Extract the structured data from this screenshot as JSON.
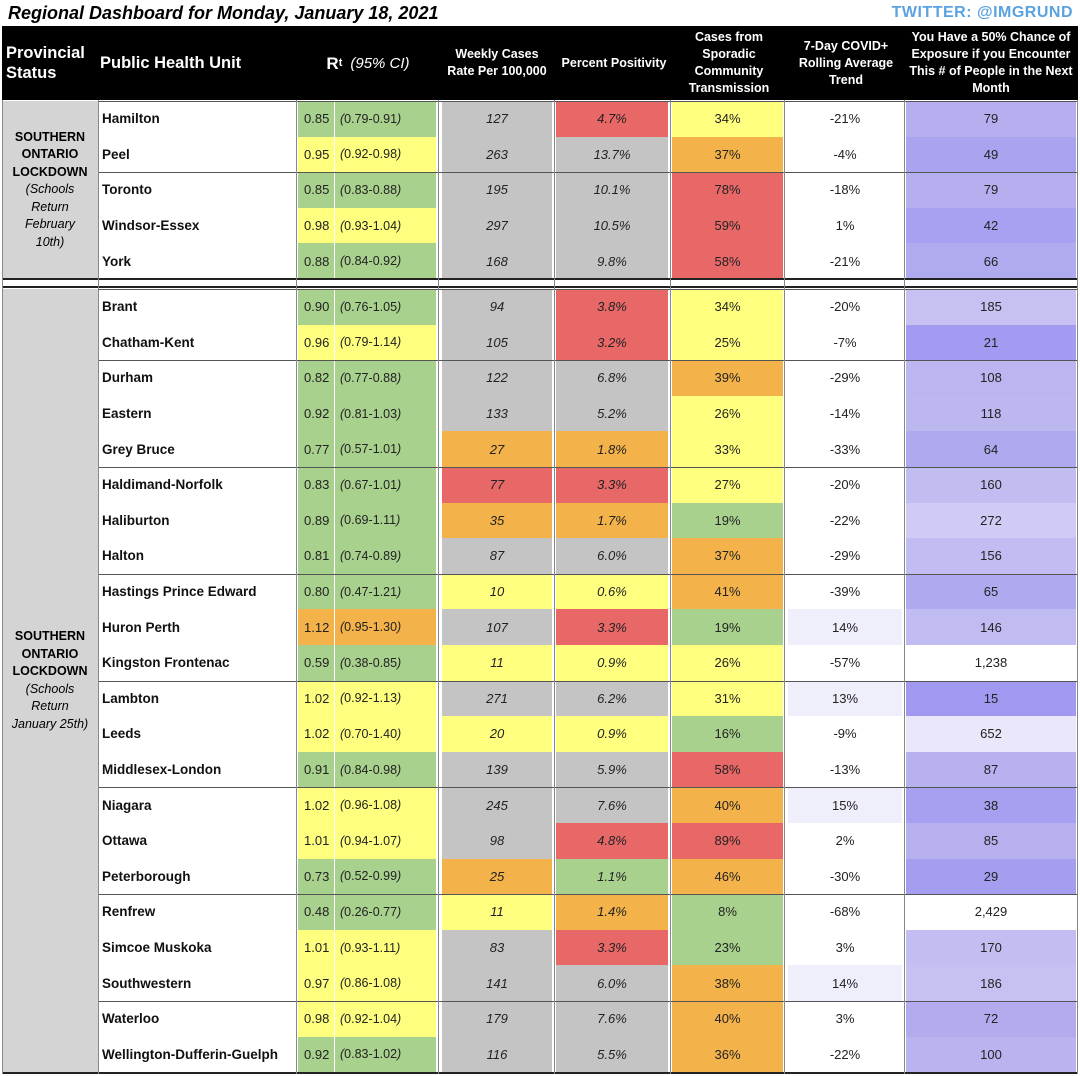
{
  "title": "Regional Dashboard for Monday, January 18, 2021",
  "twitter": "TWITTER: @IMGRUND",
  "headers": {
    "status": "Provincial Status",
    "phu": "Public Health Unit",
    "rt_main": "R",
    "rt_sub": "t",
    "rt_ci": "(95% CI)",
    "weekly": "Weekly Cases Rate Per 100,000",
    "positivity": "Percent Positivity",
    "sporadic": "Cases from Sporadic Community Transmission",
    "trend": "7-Day COVID+ Rolling Average Trend",
    "exposure": "You Have a 50% Chance of Exposure if you Encounter This # of People in the Next Month"
  },
  "groups": [
    {
      "lines": [
        "SOUTHERN",
        "ONTARIO",
        "LOCKDOWN"
      ],
      "italic_lines": [
        "(Schools",
        "Return",
        "February",
        "10th)"
      ]
    },
    {
      "lines": [
        "SOUTHERN",
        "ONTARIO",
        "LOCKDOWN"
      ],
      "italic_lines": [
        "(Schools",
        "Return",
        "January 25th)"
      ]
    }
  ],
  "colors": {
    "green": "#a9d18e",
    "yellow": "#ffff7f",
    "orange": "#f4b24a",
    "red": "#e86868",
    "gray": "#c4c4c4",
    "white": "#ffffff"
  },
  "rows": [
    {
      "name": "Hamilton",
      "rt": "0.85",
      "lo": "0.79",
      "hi": "0.91",
      "rtc": "green",
      "weekly": "127",
      "wc": "gray",
      "pos": "4.7%",
      "pc": "red",
      "spor": "34%",
      "sc": "yellow",
      "trend": "-21%",
      "tc": "white",
      "exp": "79",
      "ec": "#b5afef"
    },
    {
      "name": "Peel",
      "rt": "0.95",
      "lo": "0.92",
      "hi": "0.98",
      "rtc": "yellow",
      "weekly": "263",
      "wc": "gray",
      "pos": "13.7%",
      "pc": "gray",
      "spor": "37%",
      "sc": "orange",
      "trend": "-4%",
      "tc": "white",
      "exp": "49",
      "ec": "#aaa3f0"
    },
    {
      "name": "Toronto",
      "rt": "0.85",
      "lo": "0.83",
      "hi": "0.88",
      "rtc": "green",
      "weekly": "195",
      "wc": "gray",
      "pos": "10.1%",
      "pc": "gray",
      "spor": "78%",
      "sc": "red",
      "trend": "-18%",
      "tc": "white",
      "exp": "79",
      "ec": "#b5afef"
    },
    {
      "name": "Windsor-Essex",
      "rt": "0.98",
      "lo": "0.93",
      "hi": "1.04",
      "rtc": "yellow",
      "weekly": "297",
      "wc": "gray",
      "pos": "10.5%",
      "pc": "gray",
      "spor": "59%",
      "sc": "red",
      "trend": "1%",
      "tc": "white",
      "exp": "42",
      "ec": "#a8a0f0"
    },
    {
      "name": "York",
      "rt": "0.88",
      "lo": "0.84",
      "hi": "0.92",
      "rtc": "green",
      "weekly": "168",
      "wc": "gray",
      "pos": "9.8%",
      "pc": "gray",
      "spor": "58%",
      "sc": "red",
      "trend": "-21%",
      "tc": "white",
      "exp": "66",
      "ec": "#b0aaef"
    },
    {
      "name": "Brant",
      "rt": "0.90",
      "lo": "0.76",
      "hi": "1.05",
      "rtc": "green",
      "weekly": "94",
      "wc": "gray",
      "pos": "3.8%",
      "pc": "red",
      "spor": "34%",
      "sc": "yellow",
      "trend": "-20%",
      "tc": "white",
      "exp": "185",
      "ec": "#c6c1f2"
    },
    {
      "name": "Chatham-Kent",
      "rt": "0.96",
      "lo": "0.79",
      "hi": "1.14",
      "rtc": "yellow",
      "weekly": "105",
      "wc": "gray",
      "pos": "3.2%",
      "pc": "red",
      "spor": "25%",
      "sc": "yellow",
      "trend": "-7%",
      "tc": "white",
      "exp": "21",
      "ec": "#a39bf1"
    },
    {
      "name": "Durham",
      "rt": "0.82",
      "lo": "0.77",
      "hi": "0.88",
      "rtc": "green",
      "weekly": "122",
      "wc": "gray",
      "pos": "6.8%",
      "pc": "gray",
      "spor": "39%",
      "sc": "orange",
      "trend": "-29%",
      "tc": "white",
      "exp": "108",
      "ec": "#bbb5f0"
    },
    {
      "name": "Eastern",
      "rt": "0.92",
      "lo": "0.81",
      "hi": "1.03",
      "rtc": "green",
      "weekly": "133",
      "wc": "gray",
      "pos": "5.2%",
      "pc": "gray",
      "spor": "26%",
      "sc": "yellow",
      "trend": "-14%",
      "tc": "white",
      "exp": "118",
      "ec": "#bdb7f0"
    },
    {
      "name": "Grey Bruce",
      "rt": "0.77",
      "lo": "0.57",
      "hi": "1.01",
      "rtc": "green",
      "weekly": "27",
      "wc": "orange",
      "pos": "1.8%",
      "pc": "orange",
      "spor": "33%",
      "sc": "yellow",
      "trend": "-33%",
      "tc": "white",
      "exp": "64",
      "ec": "#afa9ef"
    },
    {
      "name": "Haldimand-Norfolk",
      "rt": "0.83",
      "lo": "0.67",
      "hi": "1.01",
      "rtc": "green",
      "weekly": "77",
      "wc": "red",
      "pos": "3.3%",
      "pc": "red",
      "spor": "27%",
      "sc": "yellow",
      "trend": "-20%",
      "tc": "white",
      "exp": "160",
      "ec": "#c2bdf1"
    },
    {
      "name": "Haliburton",
      "rt": "0.89",
      "lo": "0.69",
      "hi": "1.11",
      "rtc": "green",
      "weekly": "35",
      "wc": "orange",
      "pos": "1.7%",
      "pc": "orange",
      "spor": "19%",
      "sc": "green",
      "trend": "-22%",
      "tc": "white",
      "exp": "272",
      "ec": "#cfcbf4"
    },
    {
      "name": "Halton",
      "rt": "0.81",
      "lo": "0.74",
      "hi": "0.89",
      "rtc": "green",
      "weekly": "87",
      "wc": "gray",
      "pos": "6.0%",
      "pc": "gray",
      "spor": "37%",
      "sc": "orange",
      "trend": "-29%",
      "tc": "white",
      "exp": "156",
      "ec": "#c1bcf1"
    },
    {
      "name": "Hastings Prince Edward",
      "rt": "0.80",
      "lo": "0.47",
      "hi": "1.21",
      "rtc": "green",
      "weekly": "10",
      "wc": "yellow",
      "pos": "0.6%",
      "pc": "yellow",
      "spor": "41%",
      "sc": "orange",
      "trend": "-39%",
      "tc": "white",
      "exp": "65",
      "ec": "#afa9ef"
    },
    {
      "name": "Huron Perth",
      "rt": "1.12",
      "lo": "0.95",
      "hi": "1.30",
      "rtc": "orange",
      "weekly": "107",
      "wc": "gray",
      "pos": "3.3%",
      "pc": "red",
      "spor": "19%",
      "sc": "green",
      "trend": "14%",
      "tc": "#efeefb",
      "exp": "146",
      "ec": "#c0bbf1"
    },
    {
      "name": "Kingston Frontenac",
      "rt": "0.59",
      "lo": "0.38",
      "hi": "0.85",
      "rtc": "green",
      "weekly": "11",
      "wc": "yellow",
      "pos": "0.9%",
      "pc": "yellow",
      "spor": "26%",
      "sc": "yellow",
      "trend": "-57%",
      "tc": "white",
      "exp": "1,238",
      "ec": "#ffffff"
    },
    {
      "name": "Lambton",
      "rt": "1.02",
      "lo": "0.92",
      "hi": "1.13",
      "rtc": "yellow",
      "weekly": "271",
      "wc": "gray",
      "pos": "6.2%",
      "pc": "gray",
      "spor": "31%",
      "sc": "yellow",
      "trend": "13%",
      "tc": "#efeefb",
      "exp": "15",
      "ec": "#a199f1"
    },
    {
      "name": "Leeds",
      "rt": "1.02",
      "lo": "0.70",
      "hi": "1.40",
      "rtc": "yellow",
      "weekly": "20",
      "wc": "yellow",
      "pos": "0.9%",
      "pc": "yellow",
      "spor": "16%",
      "sc": "green",
      "trend": "-9%",
      "tc": "white",
      "exp": "652",
      "ec": "#e9e7f9"
    },
    {
      "name": "Middlesex-London",
      "rt": "0.91",
      "lo": "0.84",
      "hi": "0.98",
      "rtc": "green",
      "weekly": "139",
      "wc": "gray",
      "pos": "5.9%",
      "pc": "gray",
      "spor": "58%",
      "sc": "red",
      "trend": "-13%",
      "tc": "white",
      "exp": "87",
      "ec": "#b7b1ef"
    },
    {
      "name": "Niagara",
      "rt": "1.02",
      "lo": "0.96",
      "hi": "1.08",
      "rtc": "yellow",
      "weekly": "245",
      "wc": "gray",
      "pos": "7.6%",
      "pc": "gray",
      "spor": "40%",
      "sc": "orange",
      "trend": "15%",
      "tc": "#efeefb",
      "exp": "38",
      "ec": "#a79ff0"
    },
    {
      "name": "Ottawa",
      "rt": "1.01",
      "lo": "0.94",
      "hi": "1.07",
      "rtc": "yellow",
      "weekly": "98",
      "wc": "gray",
      "pos": "4.8%",
      "pc": "red",
      "spor": "89%",
      "sc": "red",
      "trend": "2%",
      "tc": "white",
      "exp": "85",
      "ec": "#b6b0ef"
    },
    {
      "name": "Peterborough",
      "rt": "0.73",
      "lo": "0.52",
      "hi": "0.99",
      "rtc": "green",
      "weekly": "25",
      "wc": "orange",
      "pos": "1.1%",
      "pc": "green",
      "spor": "46%",
      "sc": "orange",
      "trend": "-30%",
      "tc": "white",
      "exp": "29",
      "ec": "#a59df0"
    },
    {
      "name": "Renfrew",
      "rt": "0.48",
      "lo": "0.26",
      "hi": "0.77",
      "rtc": "green",
      "weekly": "11",
      "wc": "yellow",
      "pos": "1.4%",
      "pc": "orange",
      "spor": "8%",
      "sc": "green",
      "trend": "-68%",
      "tc": "white",
      "exp": "2,429",
      "ec": "#ffffff"
    },
    {
      "name": "Simcoe Muskoka",
      "rt": "1.01",
      "lo": "0.93",
      "hi": "1.11",
      "rtc": "yellow",
      "weekly": "83",
      "wc": "gray",
      "pos": "3.3%",
      "pc": "red",
      "spor": "23%",
      "sc": "green",
      "trend": "3%",
      "tc": "white",
      "exp": "170",
      "ec": "#c3bef1"
    },
    {
      "name": "Southwestern",
      "rt": "0.97",
      "lo": "0.86",
      "hi": "1.08",
      "rtc": "yellow",
      "weekly": "141",
      "wc": "gray",
      "pos": "6.0%",
      "pc": "gray",
      "spor": "38%",
      "sc": "orange",
      "trend": "14%",
      "tc": "#efeefb",
      "exp": "186",
      "ec": "#c6c1f2"
    },
    {
      "name": "Waterloo",
      "rt": "0.98",
      "lo": "0.92",
      "hi": "1.04",
      "rtc": "yellow",
      "weekly": "179",
      "wc": "gray",
      "pos": "7.6%",
      "pc": "gray",
      "spor": "40%",
      "sc": "orange",
      "trend": "3%",
      "tc": "white",
      "exp": "72",
      "ec": "#b2acef"
    },
    {
      "name": "Wellington-Dufferin-Guelph",
      "rt": "0.92",
      "lo": "0.83",
      "hi": "1.02",
      "rtc": "green",
      "weekly": "116",
      "wc": "gray",
      "pos": "5.5%",
      "pc": "gray",
      "spor": "36%",
      "sc": "orange",
      "trend": "-22%",
      "tc": "white",
      "exp": "100",
      "ec": "#b9b3f0"
    }
  ]
}
